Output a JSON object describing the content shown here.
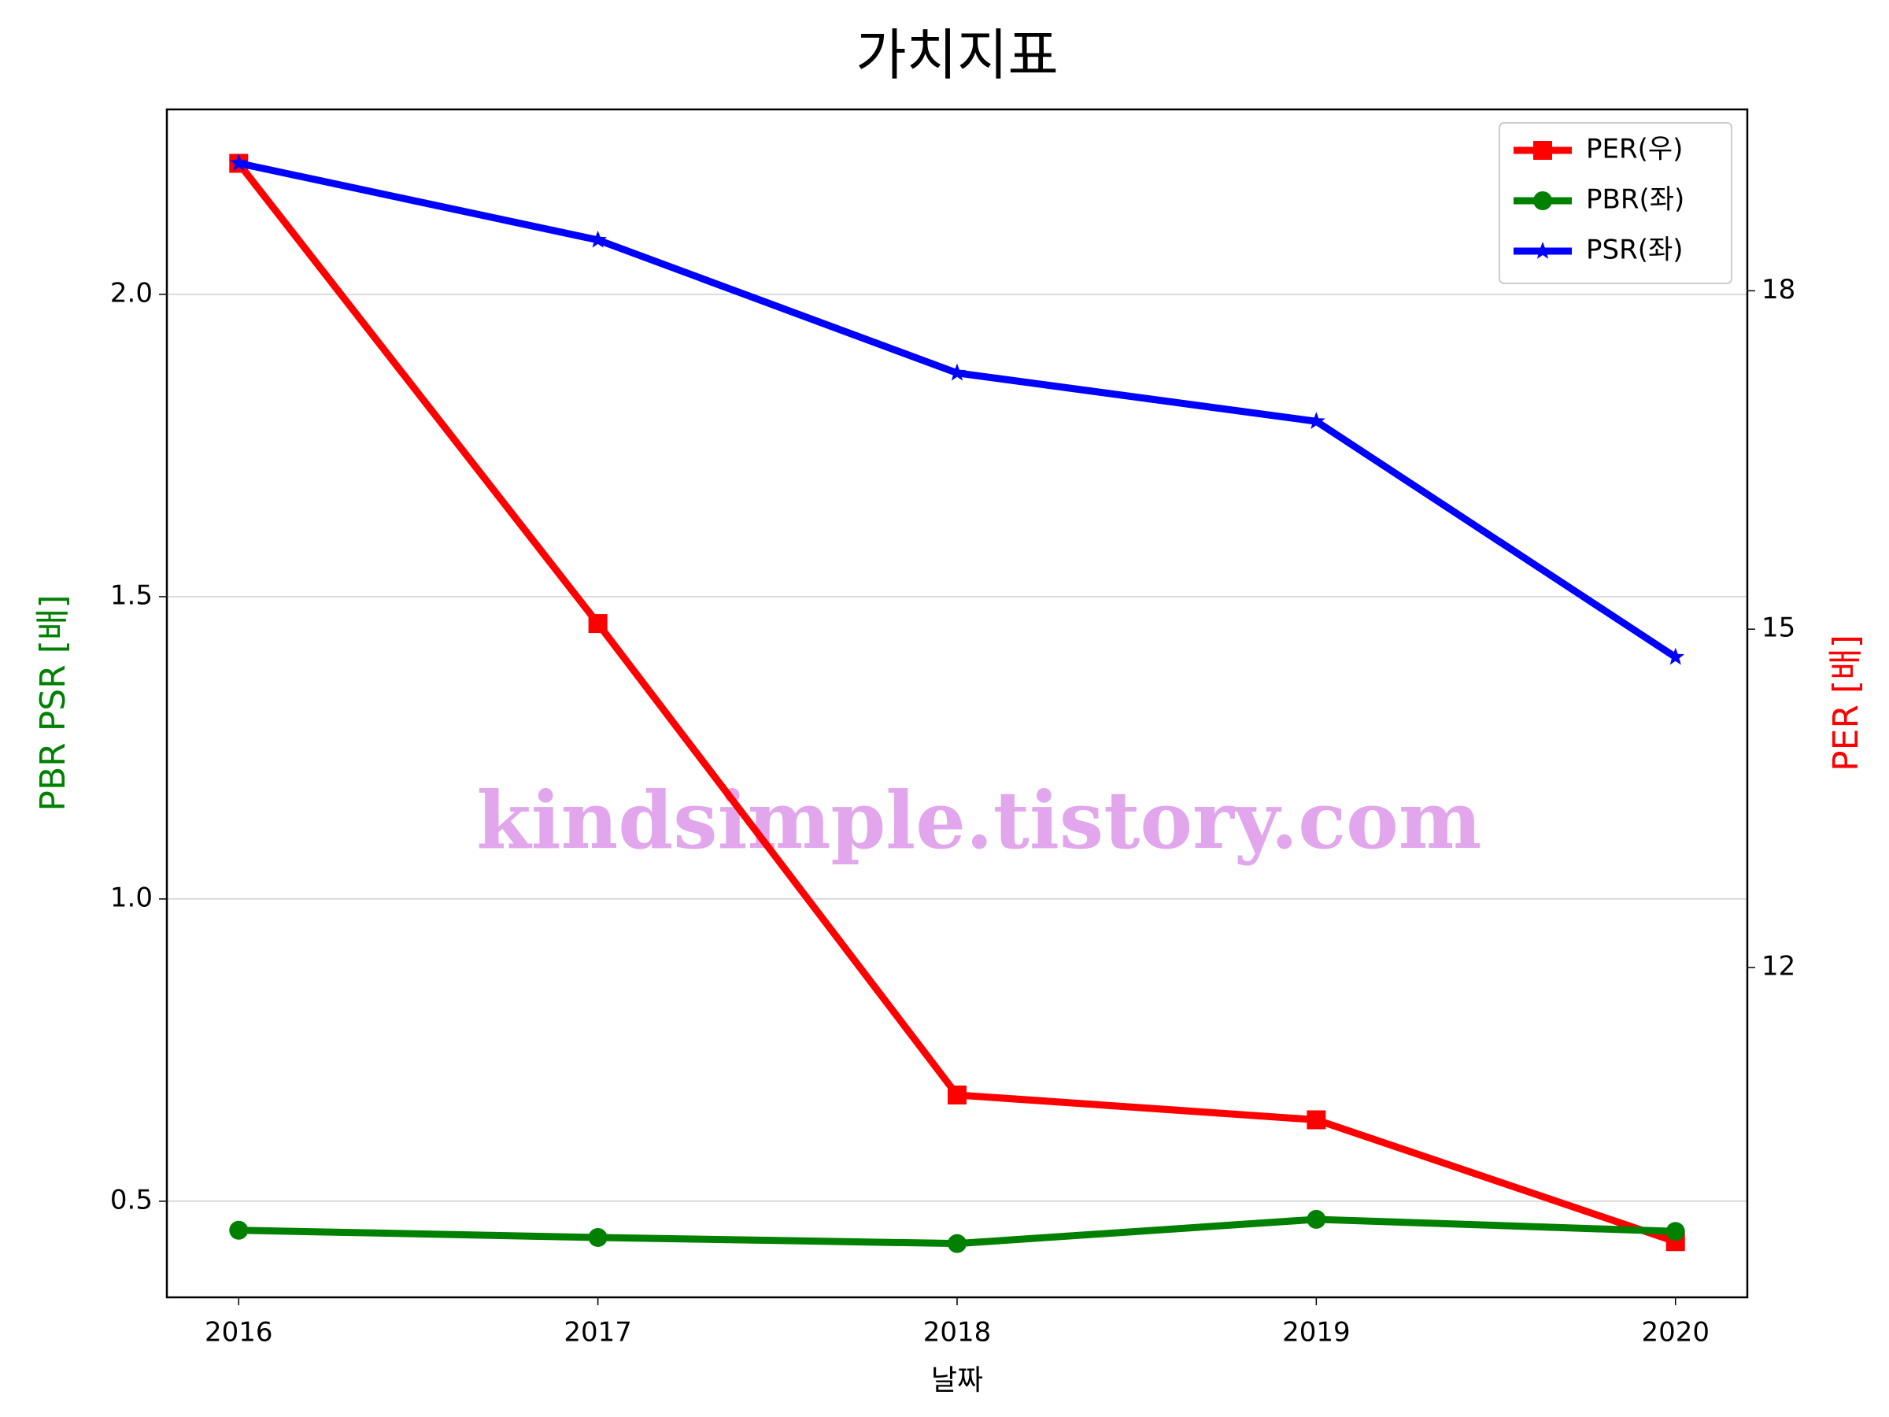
{
  "chart_data": {
    "type": "line",
    "title": "가치지표",
    "x_label": "날짜",
    "y_label": "PBR PSR [배]",
    "y2_label": "PER [배]",
    "y_label_color": "green",
    "y2_label_color": "red",
    "x": [
      2016,
      2017,
      2018,
      2019,
      2020
    ],
    "xlim": [
      2015.8,
      2020.2
    ],
    "xticks": [
      2016,
      2017,
      2018,
      2019,
      2020
    ],
    "ylim": [
      0.341,
      2.306
    ],
    "yticks": [
      {
        "value": 0.5,
        "label": "0.5"
      },
      {
        "value": 1.0,
        "label": "1.0"
      },
      {
        "value": 1.5,
        "label": "1.5"
      },
      {
        "value": 2.0,
        "label": "2.0"
      }
    ],
    "y2lim": [
      9.076,
      19.608
    ],
    "y2ticks": [
      12,
      15,
      18
    ],
    "grid": true,
    "legend": "upper right",
    "annotation": "kindsimple.tistory.com",
    "series": [
      {
        "name": "PER(우)",
        "color": "red",
        "marker": "square",
        "axis": "y2",
        "values": [
          19.13,
          15.05,
          10.87,
          10.65,
          9.57
        ]
      },
      {
        "name": "PBR(좌)",
        "color": "green",
        "marker": "circle",
        "values": [
          0.452,
          0.44,
          0.43,
          0.47,
          0.45
        ]
      },
      {
        "name": "PSR(좌)",
        "color": "blue",
        "marker": "star",
        "values": [
          2.217,
          2.09,
          1.87,
          1.79,
          1.4
        ]
      }
    ]
  }
}
